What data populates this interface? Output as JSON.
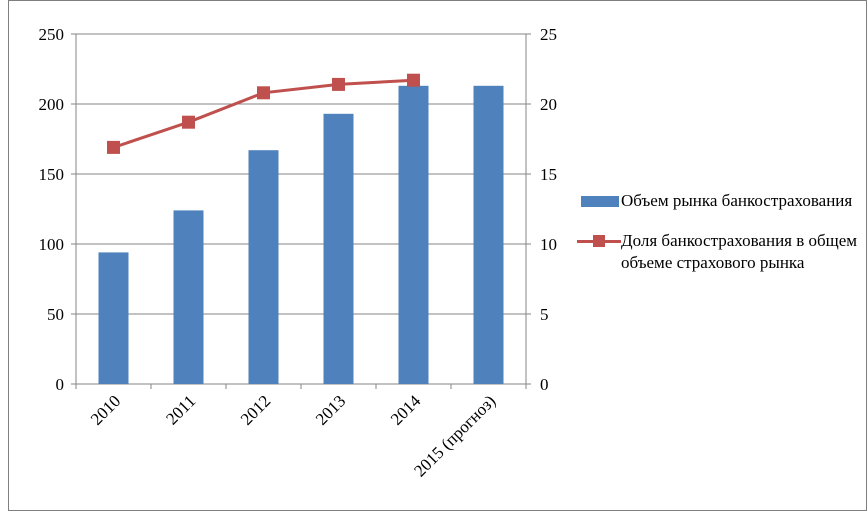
{
  "chart_data": {
    "type": "bar",
    "categories": [
      "2010",
      "2011",
      "2012",
      "2013",
      "2014",
      "2015 (прогноз)"
    ],
    "series": [
      {
        "name": "Объем рынка банкострахования",
        "type": "bar",
        "axis": "left",
        "color": "#4f81bd",
        "values": [
          94,
          124,
          167,
          193,
          213,
          213
        ]
      },
      {
        "name": "Доля банкострахования в общем объеме страхового рынка",
        "type": "line",
        "axis": "right",
        "color": "#c0504d",
        "marker": "square",
        "values": [
          16.9,
          18.7,
          20.8,
          21.4,
          21.7,
          null
        ]
      }
    ],
    "y_left": {
      "ylim": [
        0,
        250
      ],
      "ticks": [
        "0",
        "50",
        "100",
        "150",
        "200",
        "250"
      ]
    },
    "y_right": {
      "ylim": [
        0,
        25
      ],
      "ticks": [
        "0",
        "5",
        "10",
        "15",
        "20",
        "25"
      ]
    },
    "grid": true,
    "legend": "right",
    "title": "",
    "xlabel": "",
    "ylabel": ""
  }
}
